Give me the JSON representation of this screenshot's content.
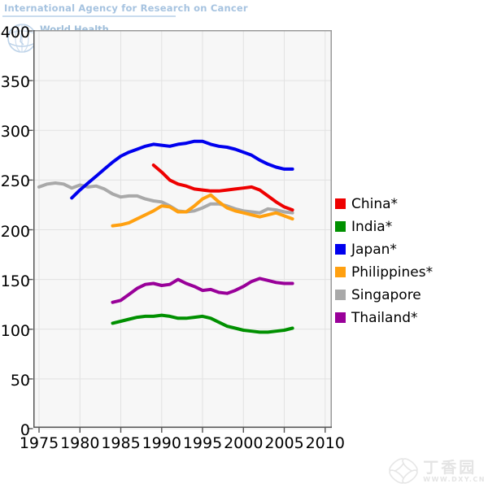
{
  "header": {
    "agency_title": "International Agency for Research on Cancer",
    "who_text": "World Health"
  },
  "watermark": {
    "site_name": "丁香园",
    "site_url": "WWW.DXY.CN"
  },
  "colors": {
    "page_bg": "#ffffff",
    "plot_bg": "#f7f7f7",
    "grid": "#e2e2e2",
    "border": "#9a9a9a",
    "axis": "#555555",
    "tick_label": "#000000",
    "header_blue": "#a6c3e0",
    "watermark_gray": "#e4e4e4"
  },
  "chart_data": {
    "type": "line",
    "title": "",
    "xlabel": "",
    "ylabel": "",
    "grid": true,
    "legend_position": "right-outside",
    "x_axis": {
      "ticks": [
        1975,
        1980,
        1985,
        1990,
        1995,
        2000,
        2005,
        2010
      ],
      "range": [
        1974.3,
        2010.8
      ]
    },
    "y_axis": {
      "ticks": [
        0,
        50,
        100,
        150,
        200,
        250,
        300,
        350,
        400
      ],
      "range": [
        0,
        400.8
      ]
    },
    "draw_order": [
      "Singapore",
      "India*",
      "Thailand*",
      "Philippines*",
      "China*",
      "Japan*"
    ],
    "series": [
      {
        "name": "China*",
        "color": "#ee0000",
        "start_year": 1989,
        "values": [
          265,
          258,
          250,
          246,
          244,
          241,
          240,
          239,
          239,
          240,
          241,
          242,
          243,
          240,
          234,
          228,
          223,
          220
        ]
      },
      {
        "name": "India*",
        "color": "#009000",
        "start_year": 1984,
        "values": [
          106,
          108,
          110,
          112,
          113,
          113,
          114,
          113,
          111,
          111,
          112,
          113,
          111,
          107,
          103,
          101,
          99,
          98,
          97,
          97,
          98,
          99,
          101
        ]
      },
      {
        "name": "Japan*",
        "color": "#0000ee",
        "start_year": 1979,
        "values": [
          232,
          240,
          247,
          254,
          261,
          268,
          274,
          278,
          281,
          284,
          286,
          285,
          284,
          286,
          287,
          289,
          289,
          286,
          284,
          283,
          281,
          278,
          275,
          270,
          266,
          263,
          261,
          261
        ]
      },
      {
        "name": "Philippines*",
        "color": "#ffa010",
        "start_year": 1984,
        "values": [
          204,
          205,
          207,
          211,
          215,
          219,
          224,
          223,
          218,
          218,
          224,
          231,
          235,
          228,
          222,
          219,
          217,
          215,
          213,
          215,
          217,
          214,
          211
        ]
      },
      {
        "name": "Singapore",
        "color": "#a9a9a9",
        "start_year": 1975,
        "values": [
          243,
          246,
          247,
          246,
          242,
          245,
          243,
          244,
          241,
          236,
          233,
          234,
          234,
          231,
          229,
          228,
          224,
          219,
          218,
          219,
          222,
          226,
          226,
          224,
          221,
          219,
          218,
          217,
          221,
          220,
          218,
          217
        ]
      },
      {
        "name": "Thailand*",
        "color": "#990099",
        "start_year": 1984,
        "values": [
          127,
          129,
          135,
          141,
          145,
          146,
          144,
          145,
          150,
          146,
          143,
          139,
          140,
          137,
          136,
          139,
          143,
          148,
          151,
          149,
          147,
          146,
          146
        ]
      }
    ]
  }
}
